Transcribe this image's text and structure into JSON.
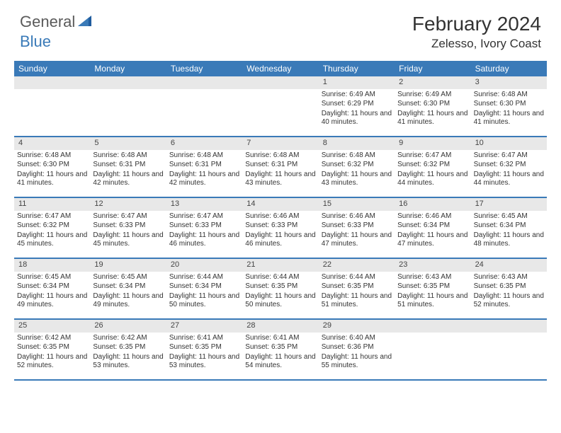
{
  "logo": {
    "brand1": "General",
    "brand2": "Blue"
  },
  "title": "February 2024",
  "location": "Zelesso, Ivory Coast",
  "weekdays": [
    "Sunday",
    "Monday",
    "Tuesday",
    "Wednesday",
    "Thursday",
    "Friday",
    "Saturday"
  ],
  "colors": {
    "header_bg": "#3a7ab8",
    "daynum_bg": "#e8e8e8",
    "border": "#3a7ab8",
    "text": "#333333",
    "logo_gray": "#5a5a5a",
    "logo_blue": "#3a7ab8"
  },
  "weeks": [
    [
      {
        "n": "",
        "sr": "",
        "ss": "",
        "dl": ""
      },
      {
        "n": "",
        "sr": "",
        "ss": "",
        "dl": ""
      },
      {
        "n": "",
        "sr": "",
        "ss": "",
        "dl": ""
      },
      {
        "n": "",
        "sr": "",
        "ss": "",
        "dl": ""
      },
      {
        "n": "1",
        "sr": "Sunrise: 6:49 AM",
        "ss": "Sunset: 6:29 PM",
        "dl": "Daylight: 11 hours and 40 minutes."
      },
      {
        "n": "2",
        "sr": "Sunrise: 6:49 AM",
        "ss": "Sunset: 6:30 PM",
        "dl": "Daylight: 11 hours and 41 minutes."
      },
      {
        "n": "3",
        "sr": "Sunrise: 6:48 AM",
        "ss": "Sunset: 6:30 PM",
        "dl": "Daylight: 11 hours and 41 minutes."
      }
    ],
    [
      {
        "n": "4",
        "sr": "Sunrise: 6:48 AM",
        "ss": "Sunset: 6:30 PM",
        "dl": "Daylight: 11 hours and 41 minutes."
      },
      {
        "n": "5",
        "sr": "Sunrise: 6:48 AM",
        "ss": "Sunset: 6:31 PM",
        "dl": "Daylight: 11 hours and 42 minutes."
      },
      {
        "n": "6",
        "sr": "Sunrise: 6:48 AM",
        "ss": "Sunset: 6:31 PM",
        "dl": "Daylight: 11 hours and 42 minutes."
      },
      {
        "n": "7",
        "sr": "Sunrise: 6:48 AM",
        "ss": "Sunset: 6:31 PM",
        "dl": "Daylight: 11 hours and 43 minutes."
      },
      {
        "n": "8",
        "sr": "Sunrise: 6:48 AM",
        "ss": "Sunset: 6:32 PM",
        "dl": "Daylight: 11 hours and 43 minutes."
      },
      {
        "n": "9",
        "sr": "Sunrise: 6:47 AM",
        "ss": "Sunset: 6:32 PM",
        "dl": "Daylight: 11 hours and 44 minutes."
      },
      {
        "n": "10",
        "sr": "Sunrise: 6:47 AM",
        "ss": "Sunset: 6:32 PM",
        "dl": "Daylight: 11 hours and 44 minutes."
      }
    ],
    [
      {
        "n": "11",
        "sr": "Sunrise: 6:47 AM",
        "ss": "Sunset: 6:32 PM",
        "dl": "Daylight: 11 hours and 45 minutes."
      },
      {
        "n": "12",
        "sr": "Sunrise: 6:47 AM",
        "ss": "Sunset: 6:33 PM",
        "dl": "Daylight: 11 hours and 45 minutes."
      },
      {
        "n": "13",
        "sr": "Sunrise: 6:47 AM",
        "ss": "Sunset: 6:33 PM",
        "dl": "Daylight: 11 hours and 46 minutes."
      },
      {
        "n": "14",
        "sr": "Sunrise: 6:46 AM",
        "ss": "Sunset: 6:33 PM",
        "dl": "Daylight: 11 hours and 46 minutes."
      },
      {
        "n": "15",
        "sr": "Sunrise: 6:46 AM",
        "ss": "Sunset: 6:33 PM",
        "dl": "Daylight: 11 hours and 47 minutes."
      },
      {
        "n": "16",
        "sr": "Sunrise: 6:46 AM",
        "ss": "Sunset: 6:34 PM",
        "dl": "Daylight: 11 hours and 47 minutes."
      },
      {
        "n": "17",
        "sr": "Sunrise: 6:45 AM",
        "ss": "Sunset: 6:34 PM",
        "dl": "Daylight: 11 hours and 48 minutes."
      }
    ],
    [
      {
        "n": "18",
        "sr": "Sunrise: 6:45 AM",
        "ss": "Sunset: 6:34 PM",
        "dl": "Daylight: 11 hours and 49 minutes."
      },
      {
        "n": "19",
        "sr": "Sunrise: 6:45 AM",
        "ss": "Sunset: 6:34 PM",
        "dl": "Daylight: 11 hours and 49 minutes."
      },
      {
        "n": "20",
        "sr": "Sunrise: 6:44 AM",
        "ss": "Sunset: 6:34 PM",
        "dl": "Daylight: 11 hours and 50 minutes."
      },
      {
        "n": "21",
        "sr": "Sunrise: 6:44 AM",
        "ss": "Sunset: 6:35 PM",
        "dl": "Daylight: 11 hours and 50 minutes."
      },
      {
        "n": "22",
        "sr": "Sunrise: 6:44 AM",
        "ss": "Sunset: 6:35 PM",
        "dl": "Daylight: 11 hours and 51 minutes."
      },
      {
        "n": "23",
        "sr": "Sunrise: 6:43 AM",
        "ss": "Sunset: 6:35 PM",
        "dl": "Daylight: 11 hours and 51 minutes."
      },
      {
        "n": "24",
        "sr": "Sunrise: 6:43 AM",
        "ss": "Sunset: 6:35 PM",
        "dl": "Daylight: 11 hours and 52 minutes."
      }
    ],
    [
      {
        "n": "25",
        "sr": "Sunrise: 6:42 AM",
        "ss": "Sunset: 6:35 PM",
        "dl": "Daylight: 11 hours and 52 minutes."
      },
      {
        "n": "26",
        "sr": "Sunrise: 6:42 AM",
        "ss": "Sunset: 6:35 PM",
        "dl": "Daylight: 11 hours and 53 minutes."
      },
      {
        "n": "27",
        "sr": "Sunrise: 6:41 AM",
        "ss": "Sunset: 6:35 PM",
        "dl": "Daylight: 11 hours and 53 minutes."
      },
      {
        "n": "28",
        "sr": "Sunrise: 6:41 AM",
        "ss": "Sunset: 6:35 PM",
        "dl": "Daylight: 11 hours and 54 minutes."
      },
      {
        "n": "29",
        "sr": "Sunrise: 6:40 AM",
        "ss": "Sunset: 6:36 PM",
        "dl": "Daylight: 11 hours and 55 minutes."
      },
      {
        "n": "",
        "sr": "",
        "ss": "",
        "dl": ""
      },
      {
        "n": "",
        "sr": "",
        "ss": "",
        "dl": ""
      }
    ]
  ]
}
